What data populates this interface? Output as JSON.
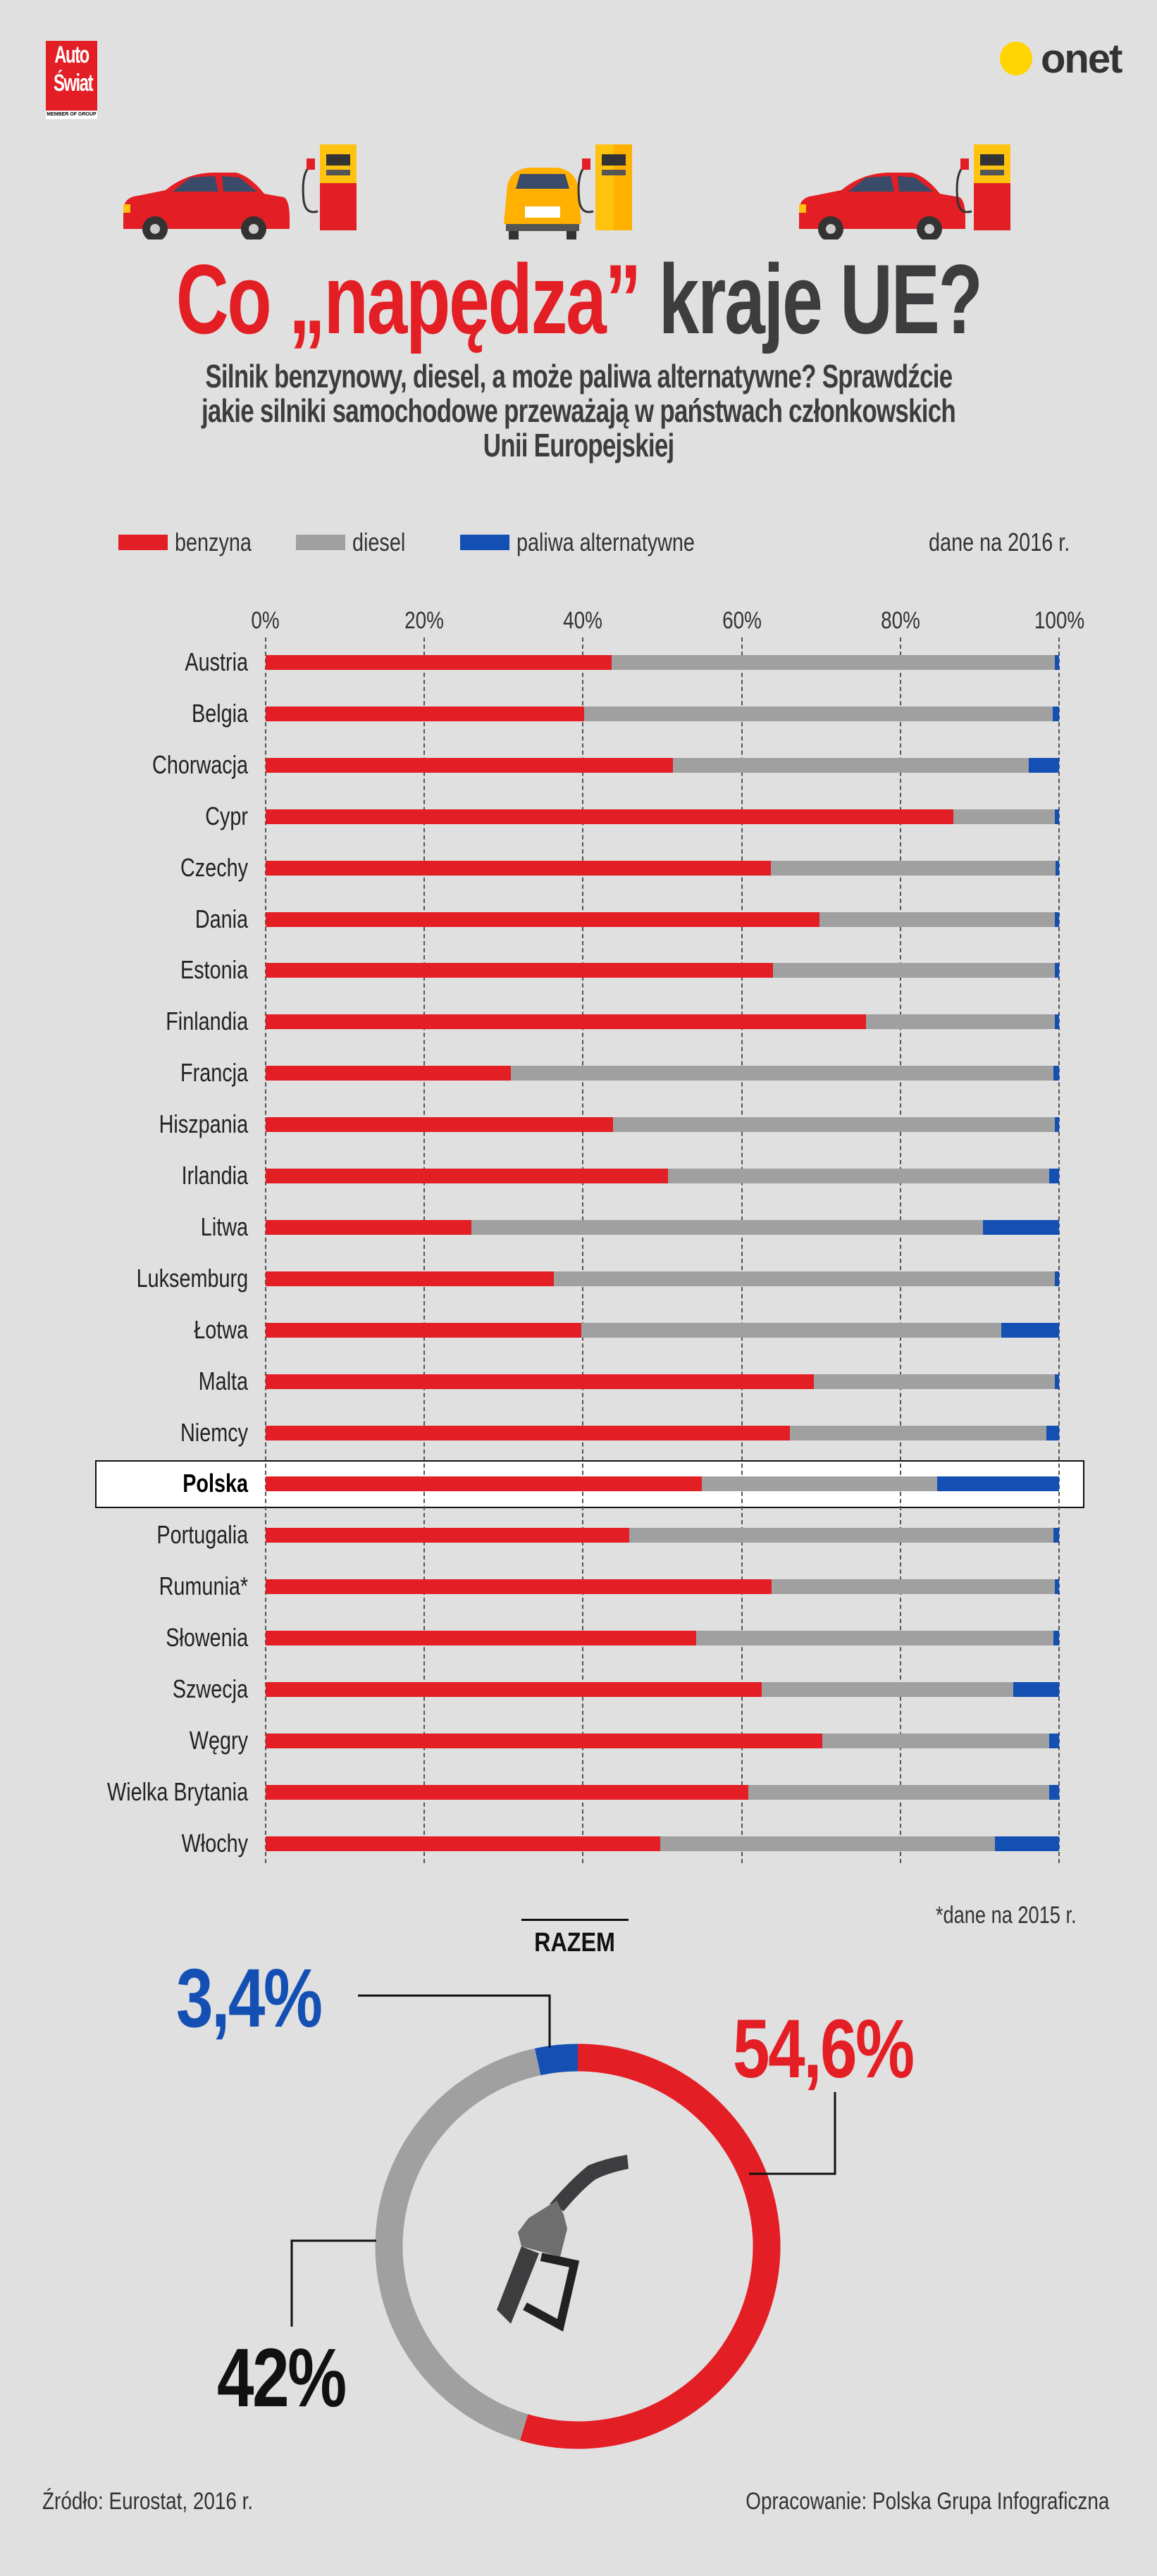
{
  "logos": {
    "left": "Auto Świat",
    "left_small": "MEMBER OF GROUP",
    "right": "onet"
  },
  "title": {
    "part1": "Co „napędza”",
    "part2": "kraje UE?"
  },
  "subtitle": [
    "Silnik benzynowy, diesel,  a może paliwa alternatywne? Sprawdźcie",
    "jakie silniki samochodowe przeważają w państwach członkowskich",
    "Unii Europejskiej"
  ],
  "colors": {
    "benzyna": "#e31e24",
    "diesel": "#a0a0a0",
    "alt": "#1450b4",
    "bg": "#e0e0e0"
  },
  "chart_data": {
    "type": "bar",
    "orientation": "horizontal-stacked-100",
    "legend": [
      "benzyna",
      "diesel",
      "paliwa alternatywne"
    ],
    "legend_placement": "top",
    "note": "dane na 2016 r.",
    "xlim": [
      0,
      100
    ],
    "ticks": [
      "0%",
      "20%",
      "40%",
      "60%",
      "80%",
      "100%"
    ],
    "grid": true,
    "highlight": "Polska",
    "categories": [
      "Austria",
      "Belgia",
      "Chorwacja",
      "Cypr",
      "Czechy",
      "Dania",
      "Estonia",
      "Finlandia",
      "Francja",
      "Hiszpania",
      "Irlandia",
      "Litwa",
      "Luksemburg",
      "Łotwa",
      "Malta",
      "Niemcy",
      "Polska",
      "Portugalia",
      "Rumunia*",
      "Słowenia",
      "Szwecja",
      "Węgry",
      "Wielka Brytania",
      "Włochy"
    ],
    "series": [
      {
        "name": "benzyna",
        "values": [
          43.6,
          40.1,
          51.3,
          86.7,
          63.7,
          69.8,
          63.9,
          75.7,
          30.9,
          43.8,
          50.7,
          25.9,
          36.3,
          39.8,
          69.1,
          66.1,
          55.0,
          45.8,
          63.8,
          54.3,
          62.5,
          70.2,
          60.8,
          49.7
        ]
      },
      {
        "name": "diesel",
        "values": [
          55.9,
          59.1,
          44.9,
          12.8,
          35.9,
          29.7,
          35.6,
          23.8,
          68.4,
          55.7,
          48.1,
          64.5,
          63.2,
          52.9,
          30.4,
          32.3,
          29.6,
          53.5,
          35.7,
          45.0,
          31.7,
          28.6,
          38.0,
          42.2
        ]
      },
      {
        "name": "paliwa alternatywne",
        "values": [
          0.5,
          0.8,
          3.8,
          0.5,
          0.4,
          0.5,
          0.5,
          0.5,
          0.7,
          0.5,
          1.2,
          9.6,
          0.5,
          7.3,
          0.5,
          1.6,
          15.4,
          0.7,
          0.5,
          0.7,
          5.8,
          1.2,
          1.2,
          8.1
        ]
      }
    ],
    "footnote": "*dane na 2015 r."
  },
  "donut": {
    "title": "RAZEM",
    "type": "pie",
    "slices": [
      {
        "name": "benzyna",
        "value": 54.6,
        "label": "54,6%"
      },
      {
        "name": "diesel",
        "value": 42.0,
        "label": "42%"
      },
      {
        "name": "paliwa alternatywne",
        "value": 3.4,
        "label": "3,4%"
      }
    ]
  },
  "footer": {
    "source": "Źródło: Eurostat, 2016 r.",
    "credit": "Opracowanie: Polska Grupa Infograficzna"
  }
}
